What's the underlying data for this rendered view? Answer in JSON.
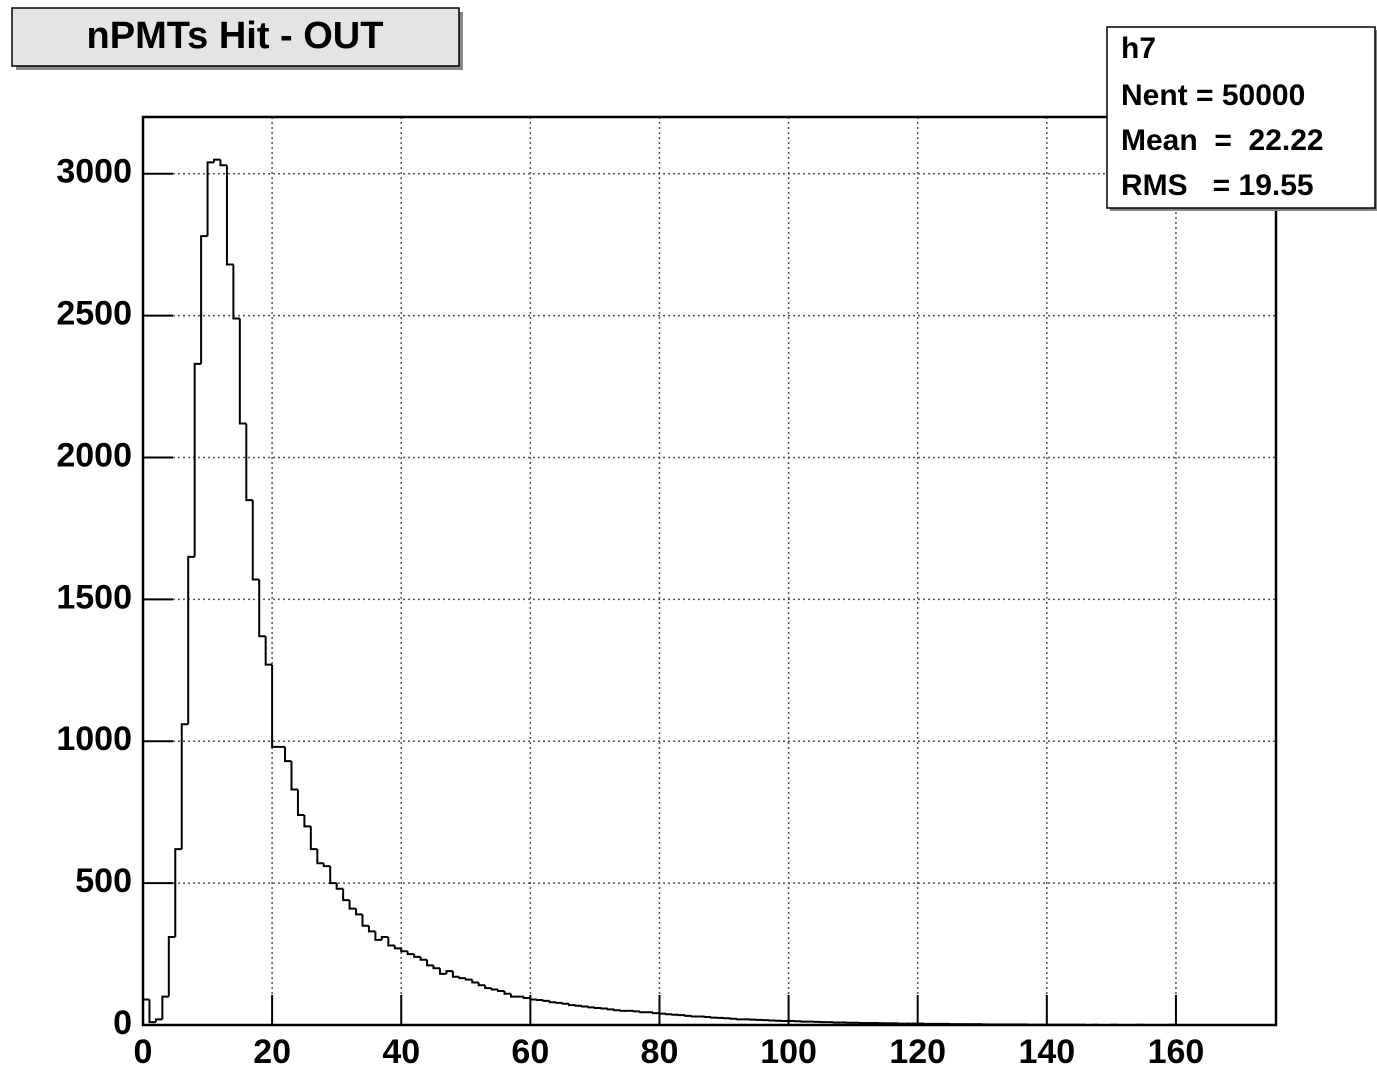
{
  "chart_data": {
    "type": "histogram",
    "title": "nPMTs Hit - OUT",
    "stats": {
      "name": "h7",
      "lines": [
        "Nent = 50000",
        "Mean  =  22.22",
        "RMS   = 19.55"
      ]
    },
    "bins": [
      0,
      1,
      2,
      3,
      4,
      5,
      6,
      7,
      8,
      9,
      10,
      11,
      12,
      13,
      14,
      15,
      16,
      17,
      18,
      19,
      20,
      21,
      22,
      23,
      24,
      25,
      26,
      27,
      28,
      29,
      30,
      31,
      32,
      33,
      34,
      35,
      36,
      37,
      38,
      39,
      40,
      41,
      42,
      43,
      44,
      45,
      46,
      47,
      48,
      49,
      50,
      51,
      52,
      53,
      54,
      55,
      56,
      57,
      58,
      59,
      60,
      61,
      62,
      63,
      64,
      65,
      66,
      67,
      68,
      69,
      70,
      71,
      72,
      73,
      74,
      75,
      76,
      77,
      78,
      79,
      80,
      81,
      82,
      83,
      84,
      85,
      86,
      87,
      88,
      89,
      90,
      91,
      92,
      93,
      94,
      95,
      96,
      97,
      98,
      99,
      100,
      101,
      102,
      103,
      104,
      105,
      106,
      107,
      108,
      109,
      110,
      111,
      112,
      113,
      114,
      115,
      116,
      117,
      118,
      119,
      120,
      121,
      122,
      123,
      124,
      125,
      126,
      127,
      128,
      129,
      130,
      131,
      132,
      133,
      134,
      135,
      136,
      137,
      138,
      139,
      140,
      141,
      142,
      143,
      144,
      145,
      146,
      147,
      148,
      149,
      150,
      151,
      152,
      153,
      154,
      155,
      156,
      157,
      158,
      159,
      160,
      161,
      162,
      163,
      164,
      165,
      166,
      167,
      168,
      169,
      170,
      171,
      172,
      173,
      174,
      175
    ],
    "counts": [
      90,
      10,
      20,
      100,
      310,
      620,
      1060,
      1650,
      2330,
      2780,
      3040,
      3050,
      3030,
      2680,
      2490,
      2120,
      1850,
      1570,
      1370,
      1270,
      980,
      980,
      930,
      830,
      740,
      700,
      620,
      570,
      560,
      500,
      480,
      440,
      410,
      390,
      350,
      330,
      300,
      310,
      280,
      270,
      260,
      250,
      240,
      230,
      210,
      200,
      180,
      190,
      170,
      165,
      160,
      150,
      140,
      130,
      125,
      120,
      110,
      100,
      100,
      95,
      90,
      88,
      85,
      80,
      78,
      75,
      70,
      68,
      65,
      62,
      60,
      58,
      55,
      52,
      50,
      50,
      48,
      45,
      45,
      42,
      40,
      38,
      36,
      35,
      32,
      30,
      30,
      28,
      26,
      25,
      24,
      22,
      20,
      20,
      19,
      18,
      17,
      16,
      15,
      14,
      14,
      13,
      12,
      12,
      11,
      10,
      10,
      9,
      9,
      8,
      8,
      7,
      7,
      7,
      6,
      6,
      6,
      5,
      5,
      5,
      5,
      4,
      4,
      4,
      4,
      3,
      3,
      3,
      3,
      3,
      2,
      2,
      2,
      2,
      2,
      2,
      2,
      1,
      1,
      1,
      1,
      1,
      1,
      1,
      1,
      1,
      0,
      1,
      0,
      0,
      1,
      0,
      0,
      0,
      1,
      0,
      0,
      0,
      0,
      1,
      0,
      0,
      0,
      0,
      0,
      0,
      0,
      0,
      0,
      0,
      0,
      0,
      0,
      0,
      0
    ],
    "color": "#000000",
    "xlim": [
      0,
      175.5
    ],
    "xticks": [
      0,
      20,
      40,
      60,
      80,
      100,
      120,
      140,
      160
    ],
    "ylim": [
      0,
      3200
    ],
    "yticks": [
      0,
      500,
      1000,
      1500,
      2000,
      2500,
      3000
    ],
    "grid": true
  }
}
